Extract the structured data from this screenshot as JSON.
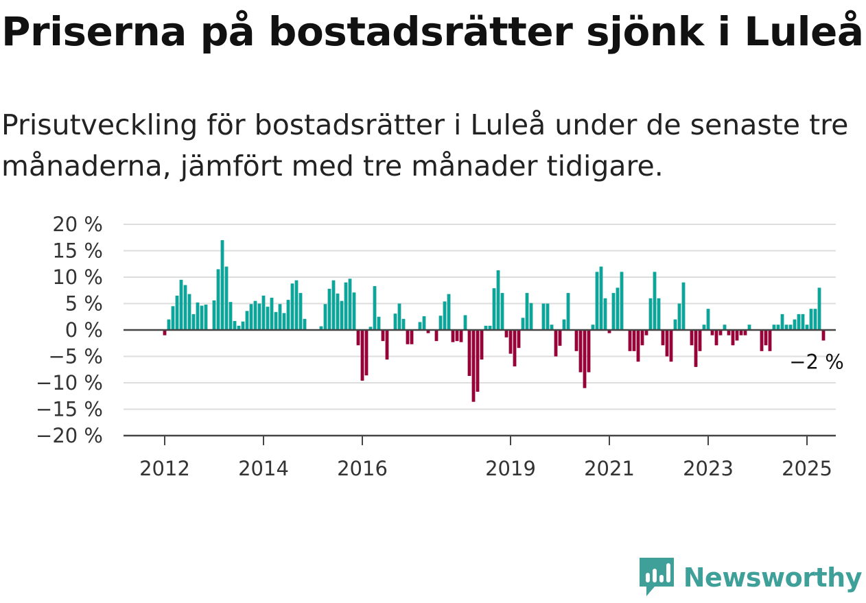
{
  "header": {
    "title": "Priserna på bostadsrätter sjönk i Luleå",
    "subtitle": "Prisutveckling för bostadsrätter i Luleå under de senaste tre månaderna, jämfört med tre månader tidigare."
  },
  "brand": {
    "name": "Newsworthy",
    "icon": "newsworthy-logo-icon",
    "color": "#3fa09a"
  },
  "chart_data": {
    "type": "bar",
    "unit": "%",
    "ylim": [
      -20,
      20
    ],
    "yticks": [
      20,
      15,
      10,
      5,
      0,
      -5,
      -10,
      -15,
      -20
    ],
    "ytick_labels": [
      "20 %",
      "15 %",
      "10 %",
      "5 %",
      "0 %",
      "−5 %",
      "−10 %",
      "−15 %",
      "−20 %"
    ],
    "xticks": [
      {
        "label": "2012",
        "index": 8
      },
      {
        "label": "2014",
        "index": 32
      },
      {
        "label": "2016",
        "index": 56
      },
      {
        "label": "2019",
        "index": 92
      },
      {
        "label": "2021",
        "index": 116
      },
      {
        "label": "2023",
        "index": 140
      },
      {
        "label": "2025",
        "index": 164
      }
    ],
    "grid": true,
    "colors": {
      "positive": "#0fa49a",
      "negative": "#960038",
      "grid": "#dddddd",
      "axis": "#444444"
    },
    "annotation": {
      "label": "−2 %",
      "index": 165
    },
    "series": [
      {
        "values": [
          0,
          0,
          0,
          0,
          0,
          0,
          0,
          0,
          -1,
          2,
          4.5,
          6.5,
          9.5,
          8.5,
          6.8,
          3,
          5.2,
          4.6,
          4.8,
          0,
          5.6,
          11.5,
          17,
          12,
          5.3,
          1.7,
          0.8,
          1.6,
          3.6,
          4.9,
          5.5,
          5,
          6.5,
          4.4,
          6.1,
          3.4,
          4.9,
          3.2,
          5.7,
          8.8,
          9.4,
          7,
          2.1,
          0,
          0,
          0,
          0.7,
          4.9,
          7.8,
          9.4,
          6.9,
          5.5,
          9,
          9.7,
          7.1,
          -2.9,
          -9.6,
          -8.6,
          0.6,
          8.3,
          2.5,
          -2.1,
          -5.6,
          0,
          3.1,
          5,
          2.1,
          -2.7,
          -2.7,
          0,
          1.5,
          2.6,
          -0.6,
          0,
          -2.1,
          2.7,
          5.4,
          6.8,
          -2.3,
          -2.1,
          -2.3,
          2.8,
          -8.7,
          -13.6,
          -11.7,
          -5.6,
          0.8,
          0.8,
          7.9,
          11.3,
          7,
          -1.4,
          -4.5,
          -6.9,
          -3.4,
          2.3,
          7,
          5.1,
          0,
          0,
          5,
          5,
          1,
          -5,
          -3,
          2,
          7,
          0,
          -4,
          -8,
          -11,
          -8,
          1,
          11,
          12,
          6,
          -0.6,
          7,
          8,
          11,
          0,
          -4,
          -4,
          -6,
          -2.9,
          -1,
          6,
          11,
          6,
          -2.9,
          -5,
          -6,
          2,
          5,
          9,
          0,
          -2.9,
          -7,
          -4,
          1,
          4,
          -1,
          -2.9,
          -1,
          1,
          -1,
          -2.9,
          -2,
          -1,
          -1,
          1,
          0,
          0,
          -4,
          -2.9,
          -4,
          1,
          1,
          3,
          1,
          1,
          2,
          3,
          3,
          1,
          4,
          4,
          8,
          -2
        ]
      }
    ]
  }
}
